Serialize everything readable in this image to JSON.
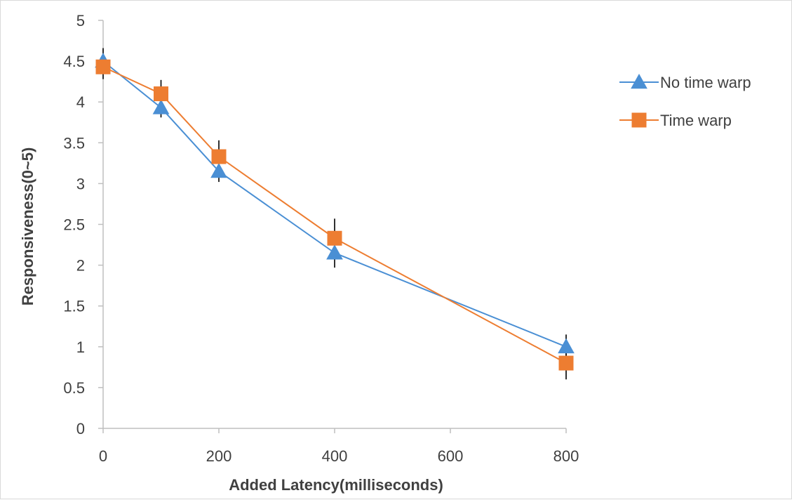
{
  "chart_data": {
    "type": "line",
    "title": "",
    "xlabel": "Added Latency(milliseconds)",
    "ylabel": "Responsiveness(0~5)",
    "xlim": [
      0,
      800
    ],
    "ylim": [
      0,
      5
    ],
    "x_ticks": [
      "0",
      "200",
      "400",
      "600",
      "800"
    ],
    "y_ticks": [
      "0",
      "0.5",
      "1",
      "1.5",
      "2",
      "2.5",
      "3",
      "3.5",
      "4",
      "4.5",
      "5"
    ],
    "grid": false,
    "legend_position": "right",
    "x": [
      0,
      100,
      200,
      400,
      800
    ],
    "series": [
      {
        "name": "No time warp",
        "marker": "triangle",
        "color": "#4a8fd4",
        "values": [
          4.5,
          3.93,
          3.15,
          2.15,
          1.0
        ],
        "error_upper": [
          0.16,
          0.12,
          0.13,
          0.18,
          0.15
        ],
        "error_lower": [
          0.16,
          0.12,
          0.13,
          0.18,
          0.15
        ]
      },
      {
        "name": "Time warp",
        "marker": "square",
        "color": "#ed7d31",
        "values": [
          4.43,
          4.1,
          3.33,
          2.33,
          0.8
        ],
        "error_upper": [
          0.15,
          0.17,
          0.2,
          0.24,
          0.12
        ],
        "error_lower": [
          0.15,
          0.17,
          0.2,
          0.24,
          0.2
        ]
      }
    ]
  }
}
